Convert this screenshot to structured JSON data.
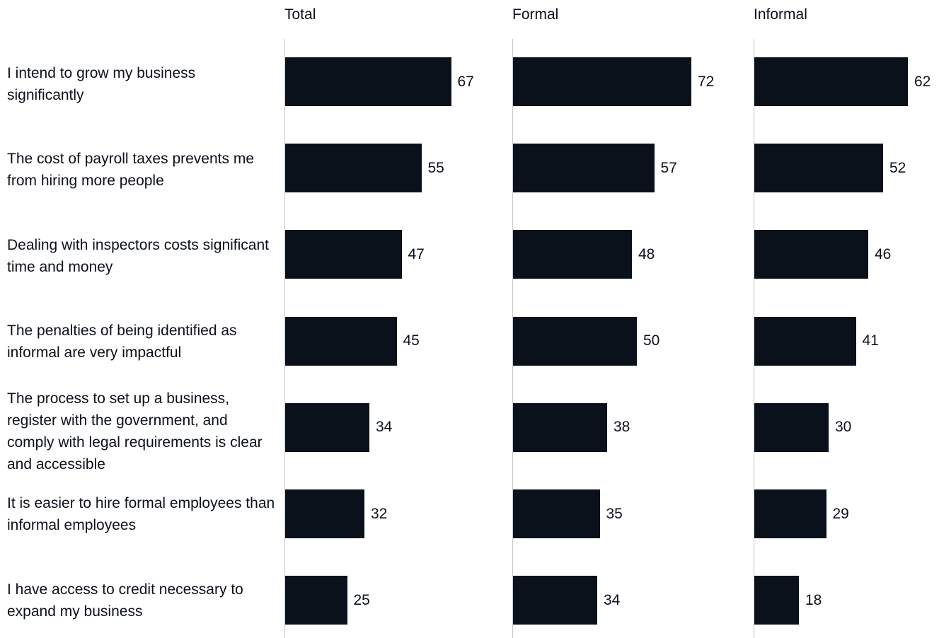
{
  "colors": {
    "bar": "#0b111a",
    "baseline": "#c8c8c8",
    "text": "#0b111a"
  },
  "chart_data": {
    "type": "bar",
    "orientation": "horizontal",
    "categories": [
      "I intend to grow my business significantly",
      "The cost of payroll taxes prevents me from hiring more people",
      "Dealing with inspectors costs significant time and money",
      "The penalties of being identified as informal are very impactful",
      "The process to set up a business, register with the government, and comply with legal requirements is clear and accessible",
      "It is easier to hire formal employees than informal employees",
      "I have access to credit necessary to expand my business"
    ],
    "series": [
      {
        "name": "Total",
        "values": [
          67,
          55,
          47,
          45,
          34,
          32,
          25
        ]
      },
      {
        "name": "Formal",
        "values": [
          72,
          57,
          48,
          50,
          38,
          35,
          34
        ]
      },
      {
        "name": "Informal",
        "values": [
          62,
          52,
          46,
          41,
          30,
          29,
          18
        ]
      }
    ],
    "xlim": [
      0,
      100
    ],
    "grid": false
  }
}
